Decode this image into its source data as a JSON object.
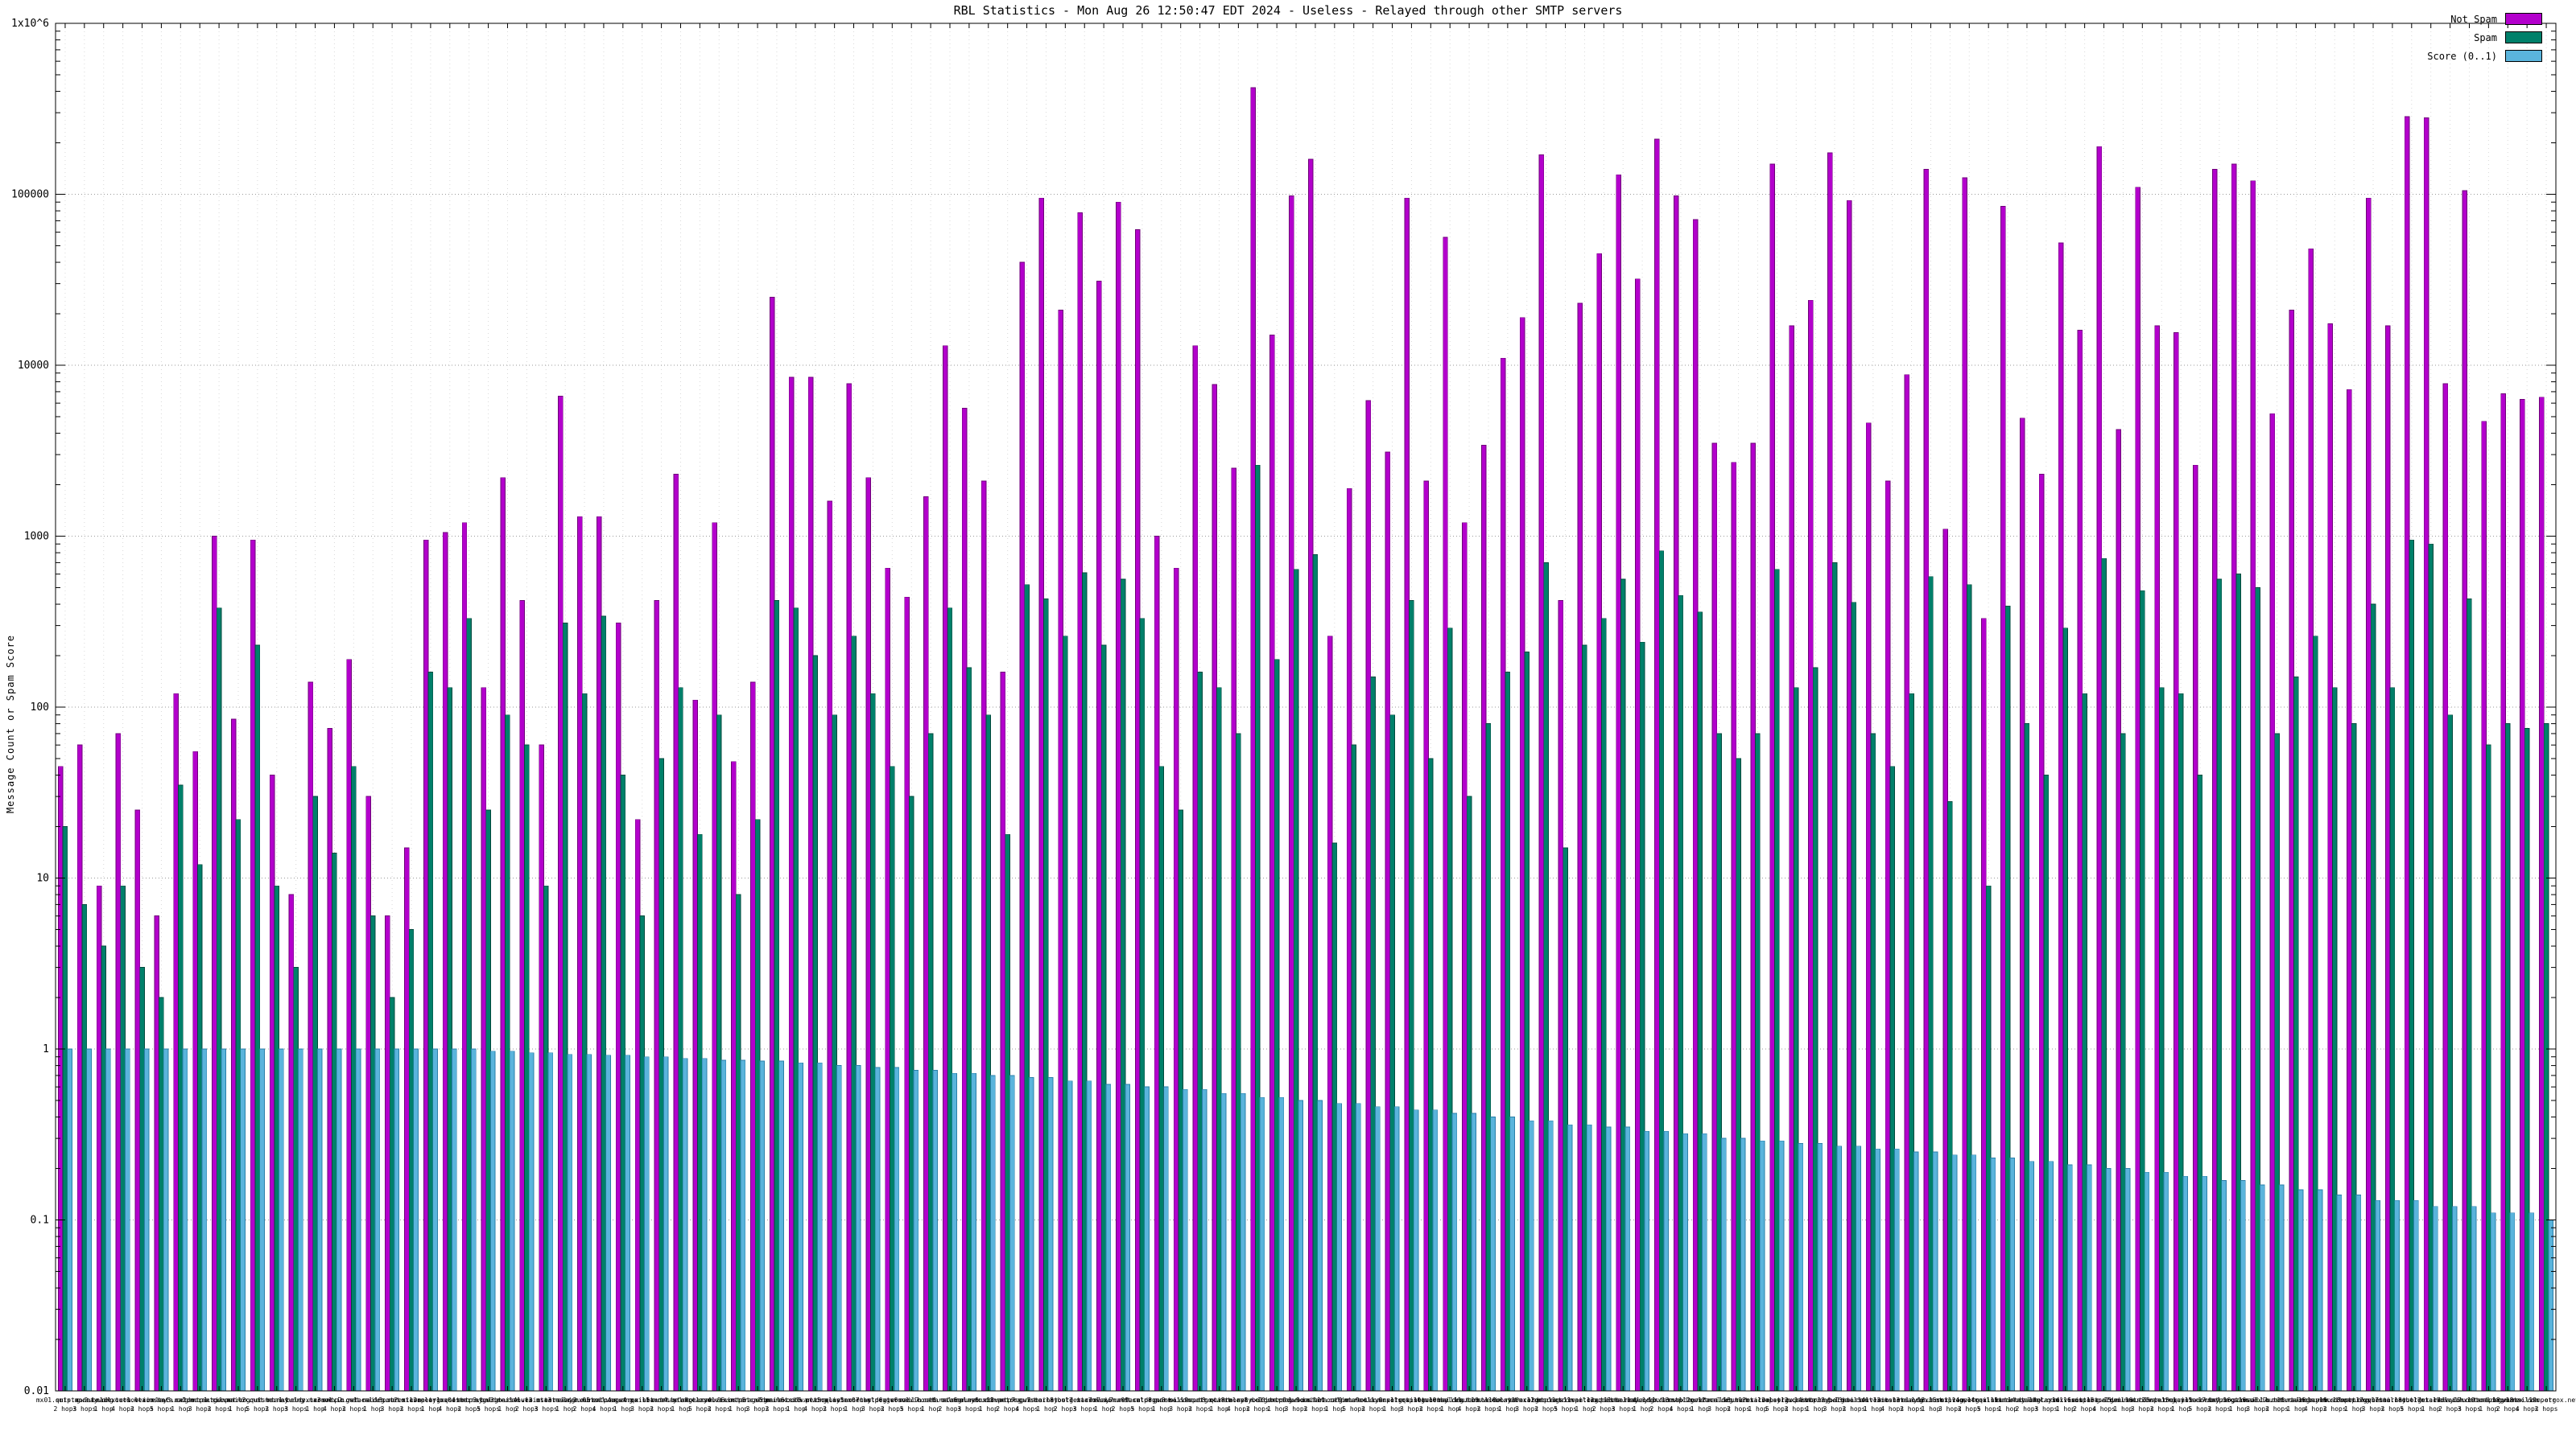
{
  "chart_data": {
    "type": "bar",
    "scale": "log",
    "title": "RBL Statistics - Mon Aug 26 12:50:47 EDT 2024 - Useless - Relayed through other SMTP servers",
    "ylabel": "Message Count or Spam Score",
    "xlabel": "",
    "ylim": [
      0.01,
      1000000
    ],
    "ytick_labels": [
      "0.01",
      "0.1",
      "1",
      "10",
      "100",
      "1000",
      "10000",
      "100000",
      "1x10^6"
    ],
    "grid": true,
    "legend_position": "top-right",
    "series": [
      {
        "name": "Not Spam",
        "color": "#b300cc",
        "edge": "#6e0078",
        "values": [
          45,
          60,
          9,
          70,
          25,
          6,
          120,
          55,
          1000,
          85,
          950,
          40,
          8,
          140,
          75,
          190,
          30,
          6,
          15,
          950,
          1050,
          1200,
          130,
          2200,
          420,
          60,
          6600,
          1300,
          1300,
          310,
          22,
          420,
          2300,
          110,
          1200,
          48,
          140,
          25000,
          8500,
          8500,
          1600,
          7800,
          2200,
          650,
          440,
          1700,
          13000,
          5600,
          2100,
          160,
          40000,
          95000,
          21000,
          78000,
          31000,
          90000,
          62000,
          1000,
          650,
          13000,
          7700,
          2500,
          420000,
          15000,
          98000,
          160000,
          260,
          1900,
          6200,
          3100,
          95000,
          2100,
          56000,
          1200,
          3400,
          11000,
          19000,
          170000,
          420,
          23000,
          45000,
          130000,
          32000,
          210000,
          98000,
          71000,
          3500,
          2700,
          3500,
          150000,
          17000,
          24000,
          175000,
          92000,
          4600,
          2100,
          8800,
          140000,
          1100,
          125000,
          330,
          85000,
          4900,
          2300,
          52000,
          16000,
          190000,
          4200,
          110000,
          17000,
          15500,
          2600,
          140000,
          150000,
          120000,
          5200,
          21000,
          48000,
          17500,
          7200,
          95000,
          17000,
          285000,
          280000,
          7800,
          105000,
          4700,
          6800,
          6300,
          6500
        ]
      },
      {
        "name": "Spam",
        "color": "#00806a",
        "edge": "#00493c",
        "values": [
          20,
          7,
          4,
          9,
          3,
          2,
          35,
          12,
          380,
          22,
          230,
          9,
          3,
          30,
          14,
          45,
          6,
          2,
          5,
          160,
          130,
          330,
          25,
          90,
          60,
          9,
          310,
          120,
          340,
          40,
          6,
          50,
          130,
          18,
          90,
          8,
          22,
          420,
          380,
          200,
          90,
          260,
          120,
          45,
          30,
          70,
          380,
          170,
          90,
          18,
          520,
          430,
          260,
          610,
          230,
          560,
          330,
          45,
          25,
          160,
          130,
          70,
          2600,
          190,
          640,
          780,
          16,
          60,
          150,
          90,
          420,
          50,
          290,
          30,
          80,
          160,
          210,
          700,
          15,
          230,
          330,
          560,
          240,
          820,
          450,
          360,
          70,
          50,
          70,
          640,
          130,
          170,
          700,
          410,
          70,
          45,
          120,
          580,
          28,
          520,
          9,
          390,
          80,
          40,
          290,
          120,
          740,
          70,
          480,
          130,
          120,
          40,
          560,
          600,
          500,
          70,
          150,
          260,
          130,
          80,
          400,
          130,
          950,
          900,
          90,
          430,
          60,
          80,
          75,
          80
        ]
      },
      {
        "name": "Score (0..1)",
        "color": "#5ab4dc",
        "edge": "#2a7fa8",
        "values": [
          1,
          1,
          1,
          1,
          1,
          1,
          1,
          1,
          1,
          1,
          1,
          1,
          1,
          1,
          1,
          1,
          1,
          1,
          1,
          1,
          1,
          1,
          0.97,
          0.97,
          0.95,
          0.95,
          0.93,
          0.93,
          0.92,
          0.92,
          0.9,
          0.9,
          0.88,
          0.88,
          0.86,
          0.86,
          0.85,
          0.85,
          0.83,
          0.83,
          0.8,
          0.8,
          0.78,
          0.78,
          0.75,
          0.75,
          0.72,
          0.72,
          0.7,
          0.7,
          0.68,
          0.68,
          0.65,
          0.65,
          0.62,
          0.62,
          0.6,
          0.6,
          0.58,
          0.58,
          0.55,
          0.55,
          0.52,
          0.52,
          0.5,
          0.5,
          0.48,
          0.48,
          0.46,
          0.46,
          0.44,
          0.44,
          0.42,
          0.42,
          0.4,
          0.4,
          0.38,
          0.38,
          0.36,
          0.36,
          0.35,
          0.35,
          0.33,
          0.33,
          0.32,
          0.32,
          0.3,
          0.3,
          0.29,
          0.29,
          0.28,
          0.28,
          0.27,
          0.27,
          0.26,
          0.26,
          0.25,
          0.25,
          0.24,
          0.24,
          0.23,
          0.23,
          0.22,
          0.22,
          0.21,
          0.21,
          0.2,
          0.2,
          0.19,
          0.19,
          0.18,
          0.18,
          0.17,
          0.17,
          0.16,
          0.16,
          0.15,
          0.15,
          0.14,
          0.14,
          0.13,
          0.13,
          0.13,
          0.12,
          0.12,
          0.12,
          0.11,
          0.11,
          0.11,
          0.1
        ]
      }
    ],
    "categories": [
      "mx01.quista.net\n2 hops",
      "smtp.mornay.org\n3 hops",
      "gw2.beldex.com\n1 hop",
      "mail.tarsol.io\n4 hops",
      "out1.vexim.net\n2 hops",
      "mta.ostara.org\n5 hops",
      "relay3.calden.net\n1 hop",
      "mx2.murex.com\n3 hops",
      "smtp1.silvan.org\n2 hops",
      "gw.petrox.net\n1 hop",
      "mail2.quista.net\n5 hops",
      "out.mornay.org\n2 hops",
      "mta1.beldex.com\n3 hops",
      "relay.tarsol.io\n1 hop",
      "mx3.vexim.net\n4 hops",
      "smtp2.ostara.org\n2 hops",
      "gw1.calden.net\n1 hop",
      "mail3.murex.com\n3 hops",
      "out2.silvan.org\n2 hops",
      "mta2.petrox.net\n1 hop",
      "relay1.quista.net\n4 hops",
      "mx04.mornay.org\n2 hops",
      "smtp3.beldex.com\n5 hops",
      "gw3.tarsol.io\n1 hop",
      "mail4.vexim.net\n2 hops",
      "out3.ostara.org\n3 hops",
      "mta3.calden.net\n1 hop",
      "relay2.murex.com\n2 hops",
      "mx05.silvan.org\n4 hops",
      "smtp4.petrox.net\n1 hop",
      "gw4.quista.net\n3 hops",
      "mail5.mornay.org\n2 hops",
      "out4.beldex.com\n1 hop",
      "mta4.tarsol.io\n5 hops",
      "relay4.vexim.net\n2 hops",
      "mx06.ostara.org\n1 hop",
      "smtp5.calden.net\n3 hops",
      "gw5.murex.com\n2 hops",
      "mail6.silvan.org\n1 hop",
      "out5.petrox.net\n4 hops",
      "mta5.quista.net\n2 hops",
      "relay5.mornay.org\n1 hop",
      "mx07.beldex.com\n3 hops",
      "smtp6.tarsol.io\n2 hops",
      "gw6.vexim.net\n5 hops",
      "mail7.ostara.org\n1 hop",
      "out6.calden.net\n2 hops",
      "mta6.murex.com\n3 hops",
      "relay6.silvan.org\n1 hop",
      "mx08.petrox.net\n2 hops",
      "smtp7.quista.net\n4 hops",
      "gw7.mornay.org\n1 hop",
      "mail8.beldex.com\n2 hops",
      "out7.tarsol.io\n3 hops",
      "mta7.vexim.net\n1 hop",
      "relay7.ostara.org\n2 hops",
      "mx09.calden.net\n5 hops",
      "smtp8.murex.com\n1 hop",
      "gw8.silvan.org\n3 hops",
      "mail9.petrox.net\n2 hops",
      "out8.quista.net\n1 hop",
      "mta8.mornay.org\n4 hops",
      "relay8.beldex.com\n2 hops",
      "mx10.tarsol.io\n1 hop",
      "smtp9.vexim.net\n3 hops",
      "gw9.ostara.org\n2 hops",
      "mail10.calden.net\n1 hop",
      "out9.murex.com\n5 hops",
      "mta9.silvan.org\n2 hops",
      "relay9.petrox.net\n1 hop",
      "mx11.quista.net\n3 hops",
      "smtp10.mornay.org\n2 hops",
      "gw10.beldex.com\n1 hop",
      "mail11.tarsol.io\n4 hops",
      "out10.vexim.net\n2 hops",
      "mta10.ostara.org\n1 hop",
      "relay10.calden.net\n3 hops",
      "mx12.murex.com\n2 hops",
      "smtp11.silvan.org\n5 hops",
      "gw11.petrox.net\n1 hop",
      "mail12.quista.net\n2 hops",
      "out11.mornay.org\n3 hops",
      "mta11.beldex.com\n1 hop",
      "relay11.tarsol.io\n2 hops",
      "mx13.vexim.net\n4 hops",
      "smtp12.ostara.org\n1 hop",
      "gw12.calden.net\n3 hops",
      "mail13.murex.com\n2 hops",
      "out12.silvan.org\n1 hop",
      "mta12.petrox.net\n5 hops",
      "relay12.quista.net\n2 hops",
      "mx14.mornay.org\n1 hop",
      "smtp13.beldex.com\n3 hops",
      "gw13.tarsol.io\n2 hops",
      "mail14.vexim.net\n1 hop",
      "out13.ostara.org\n4 hops",
      "mta13.calden.net\n2 hops",
      "relay13.murex.com\n1 hop",
      "mx15.silvan.org\n3 hops",
      "smtp14.petrox.net\n2 hops",
      "gw14.quista.net\n5 hops",
      "mail15.mornay.org\n1 hop",
      "out14.beldex.com\n2 hops",
      "mta14.tarsol.io\n3 hops",
      "relay14.vexim.net\n1 hop",
      "mx16.ostara.org\n2 hops",
      "smtp15.calden.net\n4 hops",
      "gw15.murex.com\n1 hop",
      "mail16.silvan.org\n3 hops",
      "out15.petrox.net\n2 hops",
      "mta15.quista.net\n1 hop",
      "relay15.mornay.org\n5 hops",
      "mx17.beldex.com\n2 hops",
      "smtp16.tarsol.io\n1 hop",
      "gw16.vexim.net\n3 hops",
      "mail17.ostara.org\n2 hops",
      "out16.calden.net\n1 hop",
      "mta16.murex.com\n4 hops",
      "relay16.silvan.org\n2 hops",
      "mx18.petrox.net\n1 hop",
      "smtp17.quista.net\n3 hops",
      "gw17.mornay.org\n2 hops",
      "mail18.beldex.com\n5 hops",
      "out17.tarsol.io\n1 hop",
      "mta17.vexim.net\n2 hops",
      "relay17.ostara.org\n3 hops",
      "mx19.calden.net\n1 hop",
      "smtp18.murex.com\n2 hops",
      "gw18.silvan.org\n4 hops",
      "mail19.petrox.net\n2 hops"
    ]
  }
}
